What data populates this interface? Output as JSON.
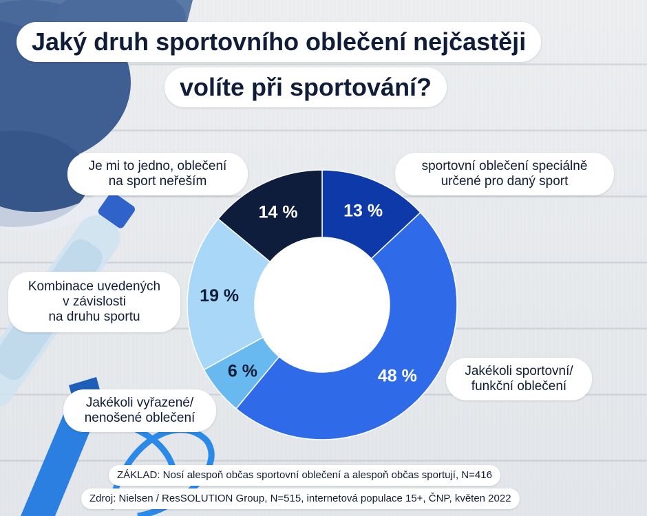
{
  "title": {
    "line1": "Jaký druh sportovního oblečení nejčastěji",
    "line2": "volíte při sportování?"
  },
  "chart_data": {
    "type": "pie",
    "donut": true,
    "slices": [
      {
        "label": "sportovní oblečení speciálně určené pro daný sport",
        "label_lines": [
          "sportovní oblečení speciálně",
          "určené pro daný sport"
        ],
        "value": 13,
        "value_label": "13 %",
        "color": "#0d3aa8",
        "text_color": "#ffffff"
      },
      {
        "label": "Jakékoli sportovní/ funkční oblečení",
        "label_lines": [
          "Jakékoli sportovní/",
          "funkční oblečení"
        ],
        "value": 48,
        "value_label": "48 %",
        "color": "#2f6ae8",
        "text_color": "#ffffff"
      },
      {
        "label": "Jakékoli vyřazené/ nenošené oblečení",
        "label_lines": [
          "Jakékoli vyřazené/",
          "nenošené oblečení"
        ],
        "value": 6,
        "value_label": "6 %",
        "color": "#67b9ef",
        "text_color": "#101d38"
      },
      {
        "label": "Kombinace uvedených v závislosti na druhu sportu",
        "label_lines": [
          "Kombinace uvedených",
          "v závislosti",
          "na druhu sportu"
        ],
        "value": 19,
        "value_label": "19 %",
        "color": "#a9d7f7",
        "text_color": "#101d38"
      },
      {
        "label": "Je mi to jedno, oblečení na sport neřeším",
        "label_lines": [
          "Je mi to jedno, oblečení",
          "na sport neřeším"
        ],
        "value": 14,
        "value_label": "14 %",
        "color": "#0f1d3c",
        "text_color": "#ffffff"
      }
    ]
  },
  "footnotes": {
    "base": "ZÁKLAD: Nosí alespoň občas sportovní oblečení a alespoň občas sportují, N=416",
    "source": "Zdroj: Nielsen / ResSOLUTION Group, N=515, internetová populace 15+, ČNP, květen 2022"
  }
}
